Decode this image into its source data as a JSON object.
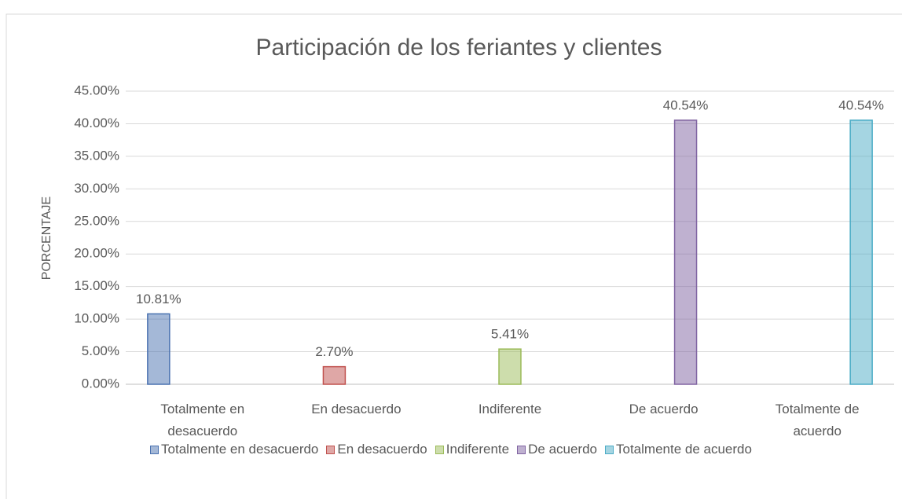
{
  "chart_data": {
    "type": "bar",
    "title": "Participación de los feriantes y clientes",
    "y_label": "PORCENTAJE",
    "categories": [
      "Totalmente en desacuerdo",
      "En desacuerdo",
      "Indiferente",
      "De acuerdo",
      "Totalmente de acuerdo"
    ],
    "series": [
      {
        "name": "Totalmente en desacuerdo",
        "color": "#4a72b0",
        "values": [
          10.81,
          null,
          null,
          null,
          null
        ],
        "value_labels": [
          "10.81%",
          null,
          null,
          null,
          null
        ]
      },
      {
        "name": "En desacuerdo",
        "color": "#c0504d",
        "values": [
          null,
          2.7,
          null,
          null,
          null
        ],
        "value_labels": [
          null,
          "2.70%",
          null,
          null,
          null
        ]
      },
      {
        "name": "Indiferente",
        "color": "#9bbb59",
        "values": [
          null,
          null,
          5.41,
          null,
          null
        ],
        "value_labels": [
          null,
          null,
          "5.41%",
          null,
          null
        ]
      },
      {
        "name": "De acuerdo",
        "color": "#8064a2",
        "values": [
          null,
          null,
          null,
          40.54,
          null
        ],
        "value_labels": [
          null,
          null,
          null,
          "40.54%",
          null
        ]
      },
      {
        "name": "Totalmente de acuerdo",
        "color": "#4bacc6",
        "values": [
          null,
          null,
          null,
          null,
          40.54
        ],
        "value_labels": [
          null,
          null,
          null,
          null,
          "40.54%"
        ]
      }
    ],
    "ylim": [
      0,
      45
    ],
    "yticks": [
      {
        "value": 0,
        "label": "0.00%"
      },
      {
        "value": 5,
        "label": "5.00%"
      },
      {
        "value": 10,
        "label": "10.00%"
      },
      {
        "value": 15,
        "label": "15.00%"
      },
      {
        "value": 20,
        "label": "20.00%"
      },
      {
        "value": 25,
        "label": "25.00%"
      },
      {
        "value": 30,
        "label": "30.00%"
      },
      {
        "value": 35,
        "label": "35.00%"
      },
      {
        "value": 40,
        "label": "40.00%"
      },
      {
        "value": 45,
        "label": "45.00%"
      }
    ],
    "grid": true,
    "legend": "bottom"
  }
}
